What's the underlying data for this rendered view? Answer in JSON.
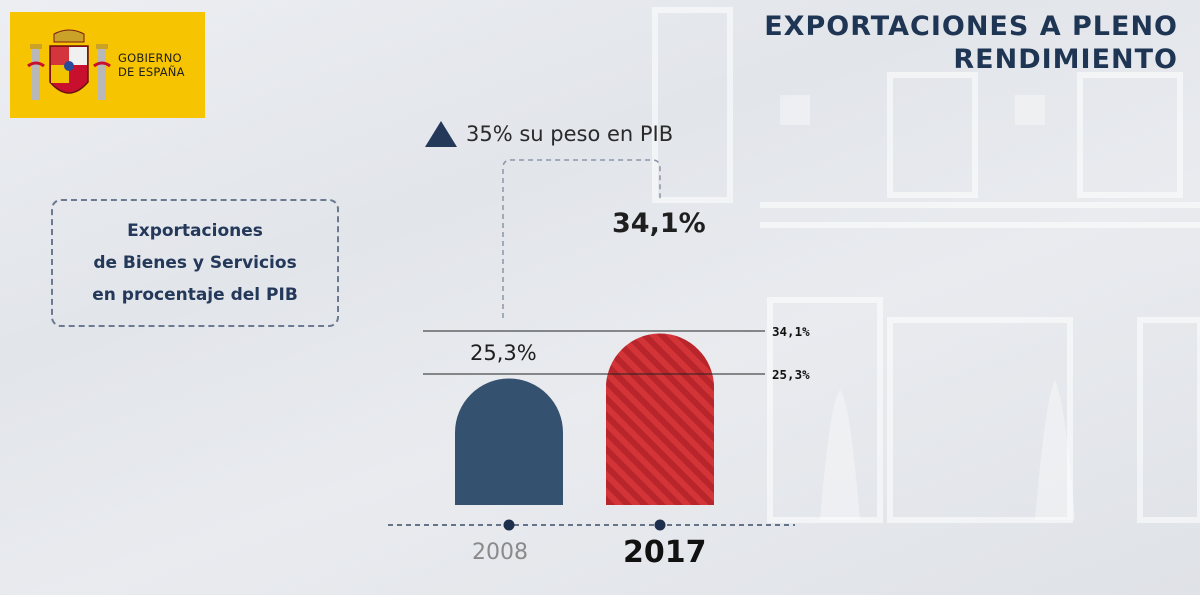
{
  "logo": {
    "line1": "GOBIERNO",
    "line2": "DE ESPAÑA",
    "background_color": "#f6c400"
  },
  "title": {
    "line1": "EXPORTACIONES A PLENO",
    "line2": "RENDIMIENTO",
    "color": "#1f3554"
  },
  "info_box": {
    "line1": "Exportaciones",
    "line2": "de Bienes y Servicios",
    "line3": "en procentaje del PIB"
  },
  "annotation": {
    "icon": "triangle-up-icon",
    "text": "35% su peso en PIB"
  },
  "chart_data": {
    "type": "bar",
    "categories": [
      "2008",
      "2017"
    ],
    "values": [
      25.3,
      34.1
    ],
    "value_labels": [
      "25,3%",
      "34,1%"
    ],
    "reference_lines": [
      {
        "value": 34.1,
        "label": "34,1%"
      },
      {
        "value": 25.3,
        "label": "25,3%"
      }
    ],
    "colors": {
      "bar_2008": "#34526f",
      "bar_2017": "#d33438",
      "hatch_2017": "#555555"
    },
    "title": "",
    "xlabel": "",
    "ylabel": "",
    "ylim": [
      0,
      40
    ],
    "grid": false,
    "legend": "none"
  }
}
